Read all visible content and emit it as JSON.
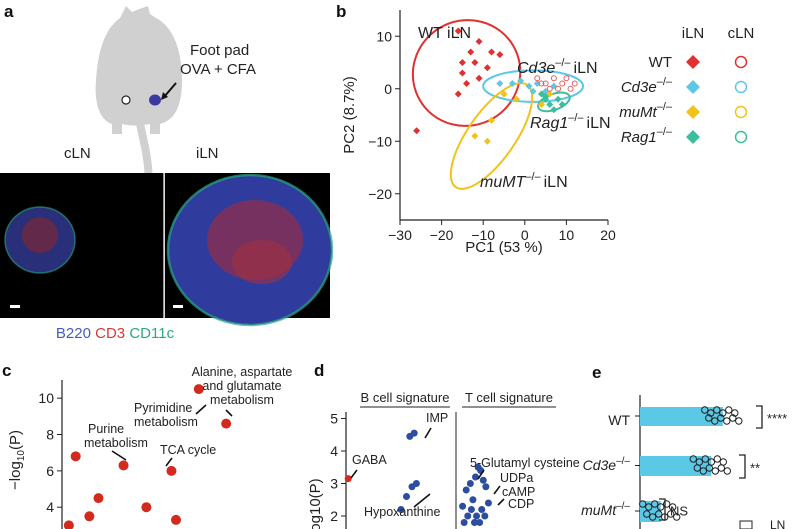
{
  "panels": {
    "a": "a",
    "b": "b",
    "c": "c",
    "d": "d",
    "e": "e"
  },
  "panel_a": {
    "footpad_label": "Foot pad",
    "injection_label": "OVA + CFA",
    "cln_label": "cLN",
    "iln_label": "iLN",
    "stain": {
      "b220": "B220",
      "cd3": "CD3",
      "cd11c": "CD11c"
    },
    "colors": {
      "b220": "#3f5fb8",
      "cd3": "#d83a3a",
      "cd11c": "#2aa884"
    }
  },
  "chart_data": [
    {
      "panel": "b",
      "type": "scatter",
      "xlabel": "PC1 (53 %)",
      "ylabel": "PC2 (8.7%)",
      "xlim": [
        -30,
        20
      ],
      "ylim": [
        -25,
        15
      ],
      "xticks": [
        "−30",
        "−20",
        "−10",
        "0",
        "10",
        "20"
      ],
      "yticks": [
        "10",
        "0",
        "−10",
        "−20"
      ],
      "legend_headers": [
        "iLN",
        "cLN"
      ],
      "legend": [
        {
          "name": "WT",
          "color": "#e03030"
        },
        {
          "name": "Cd3e−/−",
          "color": "#5bc8e6"
        },
        {
          "name": "muMt−/−",
          "color": "#f2c21b"
        },
        {
          "name": "Rag1−/−",
          "color": "#3bbf9a"
        }
      ],
      "annotations": {
        "wt": "WT iLN",
        "cd3e": "Cd3e",
        "cd3e_tail": "iLN",
        "rag": "Rag1",
        "rag_tail": "iLN",
        "mumt": "muMT",
        "mumt_tail": "iLN",
        "ko": "–/–"
      },
      "series": [
        {
          "group": "WT",
          "tissue": "iLN",
          "color": "#e03030",
          "points": [
            [
              -16,
              11
            ],
            [
              -11,
              9
            ],
            [
              -8,
              7
            ],
            [
              -6,
              6.5
            ],
            [
              -13,
              7
            ],
            [
              -15,
              5
            ],
            [
              -12,
              5
            ],
            [
              -9,
              4
            ],
            [
              -15,
              3
            ],
            [
              -11,
              2
            ],
            [
              -14,
              1
            ],
            [
              -26,
              -8
            ],
            [
              -16,
              -1
            ]
          ]
        },
        {
          "group": "Cd3e",
          "tissue": "iLN",
          "color": "#5bc8e6",
          "points": [
            [
              -6,
              1
            ],
            [
              -3,
              1
            ],
            [
              -1,
              1.5
            ],
            [
              1,
              0.5
            ],
            [
              3,
              1
            ],
            [
              5,
              -0.5
            ],
            [
              7,
              0.5
            ],
            [
              2,
              -0.5
            ]
          ]
        },
        {
          "group": "muMt",
          "tissue": "iLN",
          "color": "#f2c21b",
          "points": [
            [
              -12,
              -9
            ],
            [
              -9,
              -10
            ],
            [
              -8,
              -6
            ],
            [
              -5,
              -1
            ],
            [
              -2,
              -2
            ],
            [
              4,
              -3
            ],
            [
              6,
              -1
            ]
          ]
        },
        {
          "group": "Rag1",
          "tissue": "iLN",
          "color": "#3bbf9a",
          "points": [
            [
              4,
              -1
            ],
            [
              5,
              -2
            ],
            [
              6,
              -3
            ],
            [
              7,
              -4
            ],
            [
              8,
              -2
            ],
            [
              5,
              -1.5
            ],
            [
              9,
              -3
            ]
          ]
        },
        {
          "group": "all",
          "tissue": "cLN",
          "color": "#e06060",
          "points": [
            [
              3,
              2
            ],
            [
              5,
              1
            ],
            [
              7,
              2
            ],
            [
              9,
              1
            ],
            [
              10,
              2
            ],
            [
              11,
              0
            ],
            [
              6,
              0
            ],
            [
              4,
              1
            ],
            [
              8,
              0
            ],
            [
              12,
              1
            ]
          ]
        }
      ],
      "ellipses": [
        {
          "group": "WT",
          "color": "#e03030",
          "cx": -14,
          "cy": 3,
          "rx": 13,
          "ry": 10,
          "angle": -30
        },
        {
          "group": "Cd3e",
          "color": "#5bc8e6",
          "cx": 2,
          "cy": 0.5,
          "rx": 12,
          "ry": 3,
          "angle": 0
        },
        {
          "group": "muMt",
          "color": "#f2c21b",
          "cx": -8,
          "cy": -9,
          "rx": 15,
          "ry": 4.5,
          "angle": -55
        },
        {
          "group": "Rag1",
          "color": "#3bbf9a",
          "cx": 7,
          "cy": -2.5,
          "rx": 4,
          "ry": 1.5,
          "angle": -20
        }
      ]
    },
    {
      "panel": "c",
      "type": "scatter",
      "ylabel": "−log10(P)",
      "ylabel_main": "−log",
      "ylabel_sub": "10",
      "ylabel_tail": "(P)",
      "yticks": [
        "10",
        "8",
        "6",
        "4"
      ],
      "ylim": [
        2.8,
        11
      ],
      "points": [
        {
          "x": 0.6,
          "y": 10.5,
          "label": "Alanine, aspartate and glutamate metabolism"
        },
        {
          "x": 0.72,
          "y": 8.6,
          "label": "Pyrimidine metabolism"
        },
        {
          "x": 0.27,
          "y": 6.3,
          "label": "Purine metabolism"
        },
        {
          "x": 0.48,
          "y": 6.0,
          "label": "TCA cycle"
        },
        {
          "x": 0.06,
          "y": 6.8,
          "label": ""
        },
        {
          "x": 0.16,
          "y": 4.5,
          "label": ""
        },
        {
          "x": 0.37,
          "y": 4.0,
          "label": ""
        },
        {
          "x": 0.12,
          "y": 3.5,
          "label": ""
        },
        {
          "x": 0.5,
          "y": 3.3,
          "label": ""
        },
        {
          "x": 0.03,
          "y": 3.0,
          "label": ""
        }
      ],
      "annotation_lines": {
        "alanine": [
          "Alanine, aspartate",
          "and glutamate",
          "metabolism"
        ],
        "pyrimidine": [
          "Pyrimidine",
          "metabolism"
        ],
        "purine": [
          "Purine",
          "metabolism"
        ],
        "tca": [
          "TCA cycle"
        ]
      }
    },
    {
      "panel": "d",
      "type": "scatter",
      "ylabel": "og10(P)",
      "yticks": [
        "5",
        "4",
        "3",
        "2"
      ],
      "ylim": [
        1.6,
        5.2
      ],
      "headers": [
        "B cell signature",
        "T cell signature"
      ],
      "labels": {
        "gaba": "GABA",
        "imp": "IMP",
        "hypoxanthine": "Hypoxanthine",
        "glutamyl": "5-Glutamyl cysteine",
        "udpa": "UDPa",
        "camp": "cAMP",
        "cdp": "CDP"
      },
      "points_b": [
        [
          0.02,
          3.15
        ],
        [
          0.58,
          4.45
        ],
        [
          0.62,
          4.55
        ],
        [
          0.55,
          2.6
        ],
        [
          0.6,
          2.9
        ],
        [
          0.64,
          3.0
        ],
        [
          0.5,
          2.2
        ]
      ],
      "points_t": [
        [
          0.05,
          2.3
        ],
        [
          0.12,
          2.8
        ],
        [
          0.2,
          3.0
        ],
        [
          0.3,
          3.2
        ],
        [
          0.35,
          3.5
        ],
        [
          0.4,
          3.4
        ],
        [
          0.45,
          3.1
        ],
        [
          0.25,
          2.5
        ],
        [
          0.15,
          2.0
        ],
        [
          0.32,
          2.0
        ],
        [
          0.42,
          2.2
        ],
        [
          0.5,
          2.9
        ],
        [
          0.55,
          2.4
        ],
        [
          0.22,
          2.2
        ],
        [
          0.08,
          1.8
        ],
        [
          0.28,
          1.8
        ],
        [
          0.38,
          1.8
        ],
        [
          0.48,
          2.0
        ]
      ]
    },
    {
      "panel": "e",
      "type": "bar",
      "categories": [
        "WT",
        "Cd3e−/−",
        "muMt−/−"
      ],
      "values": [
        0.72,
        0.62,
        0.18
      ],
      "bar_color": "#5bc8e6",
      "cat_labels": {
        "wt": "WT",
        "cd3e": "Cd3e",
        "mumt": "muMt",
        "ko": "–/–"
      },
      "significance": [
        "****",
        "**",
        "NS"
      ],
      "partial_legend": "LN"
    }
  ]
}
